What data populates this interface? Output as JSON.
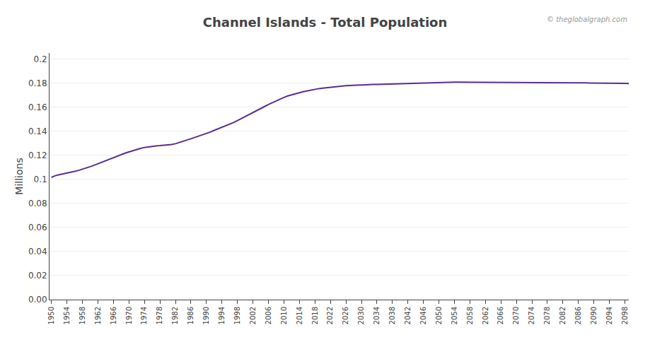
{
  "chart_data": {
    "type": "line",
    "title": "Channel Islands - Total Population",
    "ylabel": "Millions",
    "annotations": [
      "© theglobalgraph.com"
    ],
    "color": "#5B2D8E",
    "x": [
      1950,
      1951,
      1952,
      1953,
      1954,
      1955,
      1956,
      1957,
      1958,
      1959,
      1960,
      1961,
      1962,
      1963,
      1964,
      1965,
      1966,
      1967,
      1968,
      1969,
      1970,
      1971,
      1972,
      1973,
      1974,
      1975,
      1976,
      1977,
      1978,
      1979,
      1980,
      1981,
      1982,
      1983,
      1984,
      1985,
      1986,
      1987,
      1988,
      1989,
      1990,
      1991,
      1992,
      1993,
      1994,
      1995,
      1996,
      1997,
      1998,
      1999,
      2000,
      2001,
      2002,
      2003,
      2004,
      2005,
      2006,
      2007,
      2008,
      2009,
      2010,
      2011,
      2012,
      2013,
      2014,
      2015,
      2016,
      2017,
      2018,
      2019,
      2020,
      2021,
      2022,
      2023,
      2024,
      2025,
      2026,
      2027,
      2028,
      2029,
      2030,
      2031,
      2032,
      2033,
      2034,
      2035,
      2036,
      2037,
      2038,
      2039,
      2040,
      2041,
      2042,
      2043,
      2044,
      2045,
      2046,
      2047,
      2048,
      2049,
      2050,
      2051,
      2052,
      2053,
      2054,
      2055,
      2056,
      2057,
      2058,
      2059,
      2060,
      2061,
      2062,
      2063,
      2064,
      2065,
      2066,
      2067,
      2068,
      2069,
      2070,
      2071,
      2072,
      2073,
      2074,
      2075,
      2076,
      2077,
      2078,
      2079,
      2080,
      2081,
      2082,
      2083,
      2084,
      2085,
      2086,
      2087,
      2088,
      2089,
      2090,
      2091,
      2092,
      2093,
      2094,
      2095,
      2096,
      2097,
      2098,
      2099
    ],
    "values": [
      0.1016,
      0.103,
      0.1038,
      0.1044,
      0.105,
      0.1058,
      0.1066,
      0.1074,
      0.1083,
      0.1093,
      0.1105,
      0.1117,
      0.113,
      0.1143,
      0.1156,
      0.1168,
      0.118,
      0.1192,
      0.1205,
      0.1217,
      0.1228,
      0.1239,
      0.1249,
      0.1257,
      0.1265,
      0.127,
      0.1275,
      0.1278,
      0.128,
      0.1282,
      0.1285,
      0.1289,
      0.1296,
      0.1305,
      0.1316,
      0.1327,
      0.1337,
      0.1348,
      0.1358,
      0.1368,
      0.138,
      0.1393,
      0.1407,
      0.142,
      0.1432,
      0.1444,
      0.1458,
      0.1472,
      0.1488,
      0.1504,
      0.1521,
      0.1539,
      0.1556,
      0.1572,
      0.1588,
      0.1605,
      0.1622,
      0.1638,
      0.1654,
      0.1668,
      0.1681,
      0.1693,
      0.1703,
      0.1712,
      0.172,
      0.1728,
      0.1735,
      0.1742,
      0.1748,
      0.1754,
      0.1758,
      0.1762,
      0.1766,
      0.1769,
      0.1772,
      0.1775,
      0.1778,
      0.178,
      0.1782,
      0.1783,
      0.1785,
      0.1786,
      0.1787,
      0.1788,
      0.1789,
      0.179,
      0.1791,
      0.1792,
      0.1793,
      0.1794,
      0.1795,
      0.1797,
      0.1798,
      0.18,
      0.1801,
      0.1802,
      0.1803,
      0.1804,
      0.1805,
      0.1806,
      0.1807,
      0.1807,
      0.1807,
      0.1807,
      0.1807,
      0.1807,
      0.1806,
      0.1806,
      0.1806,
      0.1806,
      0.1806,
      0.1806,
      0.1806,
      0.1806,
      0.1806,
      0.1806,
      0.1806,
      0.1806,
      0.1806,
      0.1806,
      0.1806,
      0.1806,
      0.1806,
      0.1806,
      0.1806,
      0.1806,
      0.1806,
      0.1806,
      0.1806,
      0.1806,
      0.1806,
      0.1805,
      0.1805,
      0.1804,
      0.1804,
      0.1803,
      0.1803,
      0.1802,
      0.1802,
      0.1801,
      0.1801,
      0.18,
      0.18,
      0.1799,
      0.1799,
      0.1798,
      0.1798,
      0.1797,
      0.1797,
      0.1796
    ],
    "xlim": [
      1949.5,
      2099
    ],
    "xticks": [
      1950,
      1954,
      1958,
      1962,
      1966,
      1970,
      1974,
      1978,
      1982,
      1986,
      1990,
      1994,
      1998,
      2002,
      2006,
      2010,
      2014,
      2018,
      2022,
      2026,
      2030,
      2034,
      2038,
      2042,
      2046,
      2050,
      2054,
      2058,
      2062,
      2066,
      2070,
      2074,
      2078,
      2082,
      2086,
      2090,
      2094,
      2098
    ],
    "ylim": [
      0,
      0.205
    ],
    "yticks": [
      {
        "value": 0,
        "label": "0.00"
      },
      0.02,
      0.04,
      0.06,
      0.08,
      0.1,
      0.12,
      0.14,
      0.16,
      0.18,
      0.2
    ],
    "grid": true
  }
}
